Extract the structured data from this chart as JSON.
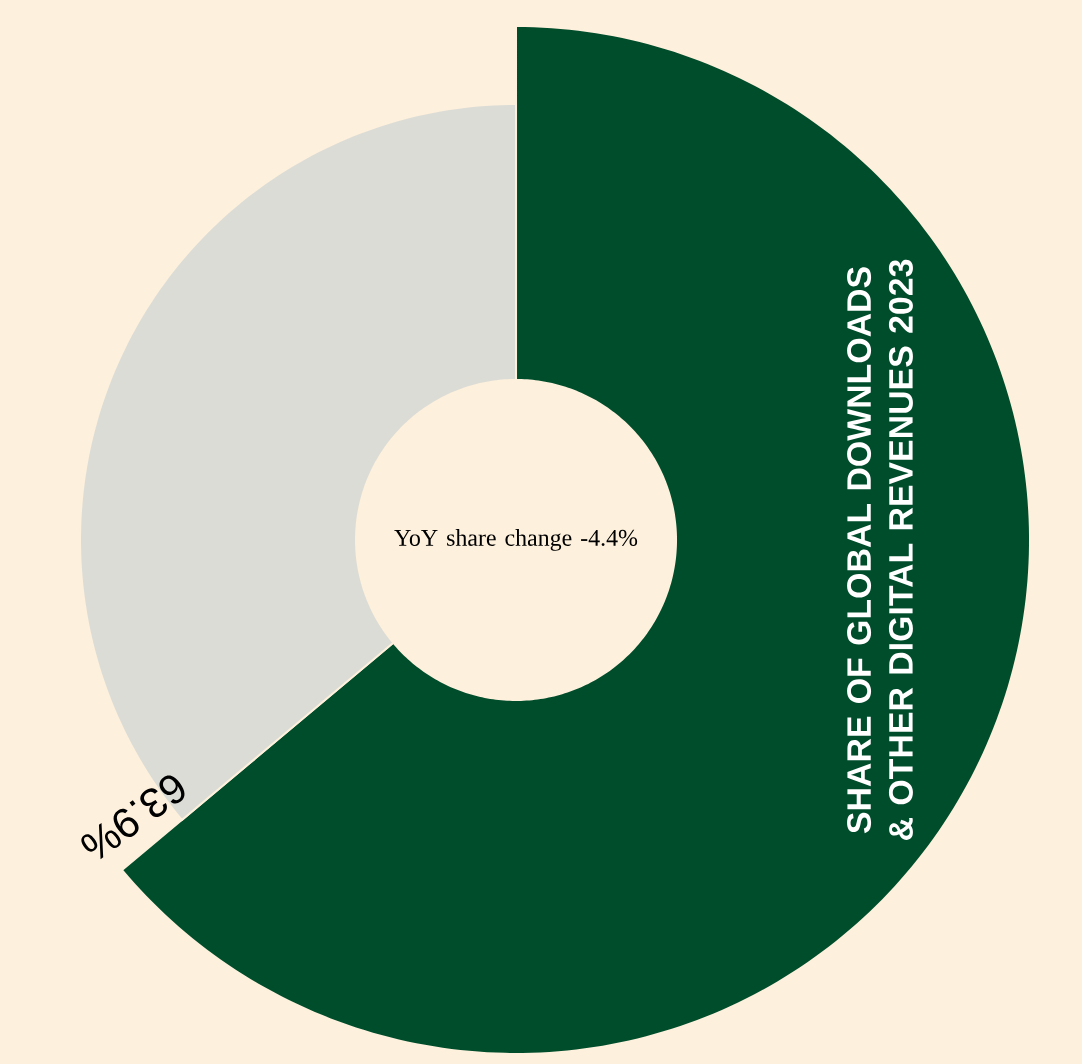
{
  "chart_data": {
    "type": "donut",
    "title": "SHARE OF GLOBAL DOWNLOADS & OTHER DIGITAL REVENUES 2023",
    "categories": [
      null,
      null
    ],
    "values": [
      63.9,
      36.1
    ],
    "colors": [
      "#004d2c",
      "#dcdcd6"
    ],
    "value_labels": [
      "63.9%",
      null
    ],
    "annotations": [
      "YoY share change -4.4%"
    ]
  }
}
